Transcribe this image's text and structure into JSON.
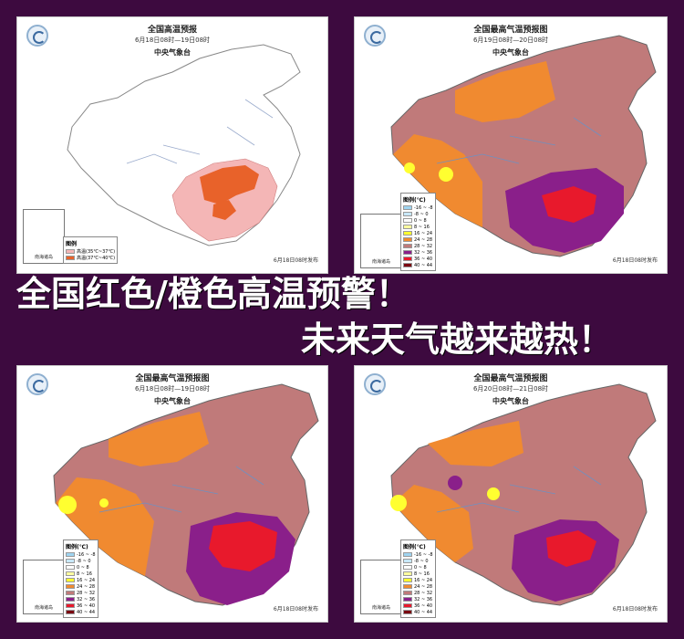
{
  "headline": {
    "line1": "全国红色/橙色高温预警！",
    "line2": "未来天气越来越热！"
  },
  "panels": [
    {
      "title": "全国高温预报",
      "date": "6月18日08时—19日08时",
      "agency": "中央气象台",
      "published": "6月18日08时发布",
      "inset_label": "南海诸岛",
      "legend_title": "图例",
      "legend": [
        {
          "label": "高温(35℃~37℃)",
          "color": "#f4b6b6"
        },
        {
          "label": "高温(37℃~40℃)",
          "color": "#e8622a"
        }
      ]
    },
    {
      "title": "全国最高气温预报图",
      "date": "6月19日08时—20日08时",
      "agency": "中央气象台",
      "published": "6月18日08时发布",
      "inset_label": "南海诸岛",
      "legend_title": "图例(℃)"
    },
    {
      "title": "全国最高气温预报图",
      "date": "6月18日08时—19日08时",
      "agency": "中央气象台",
      "published": "6月18日08时发布",
      "inset_label": "南海诸岛",
      "legend_title": "图例(℃)"
    },
    {
      "title": "全国最高气温预报图",
      "date": "6月20日08时—21日08时",
      "agency": "中央气象台",
      "published": "6月18日08时发布",
      "inset_label": "南海诸岛",
      "legend_title": "图例(℃)"
    }
  ],
  "temp_legend": [
    {
      "label": "-16 ~ -8",
      "color": "#9fd4f0"
    },
    {
      "label": "-8 ~ 0",
      "color": "#c8e8f8"
    },
    {
      "label": "0 ~ 8",
      "color": "#ffffff"
    },
    {
      "label": "8 ~ 16",
      "color": "#ffffa0"
    },
    {
      "label": "16 ~ 24",
      "color": "#ffff30"
    },
    {
      "label": "24 ~ 28",
      "color": "#f08a30"
    },
    {
      "label": "28 ~ 32",
      "color": "#c07a7a"
    },
    {
      "label": "32 ~ 36",
      "color": "#8a1f8a"
    },
    {
      "label": "36 ~ 40",
      "color": "#e8192c"
    },
    {
      "label": "40 ~ 44",
      "color": "#7a0010"
    }
  ]
}
